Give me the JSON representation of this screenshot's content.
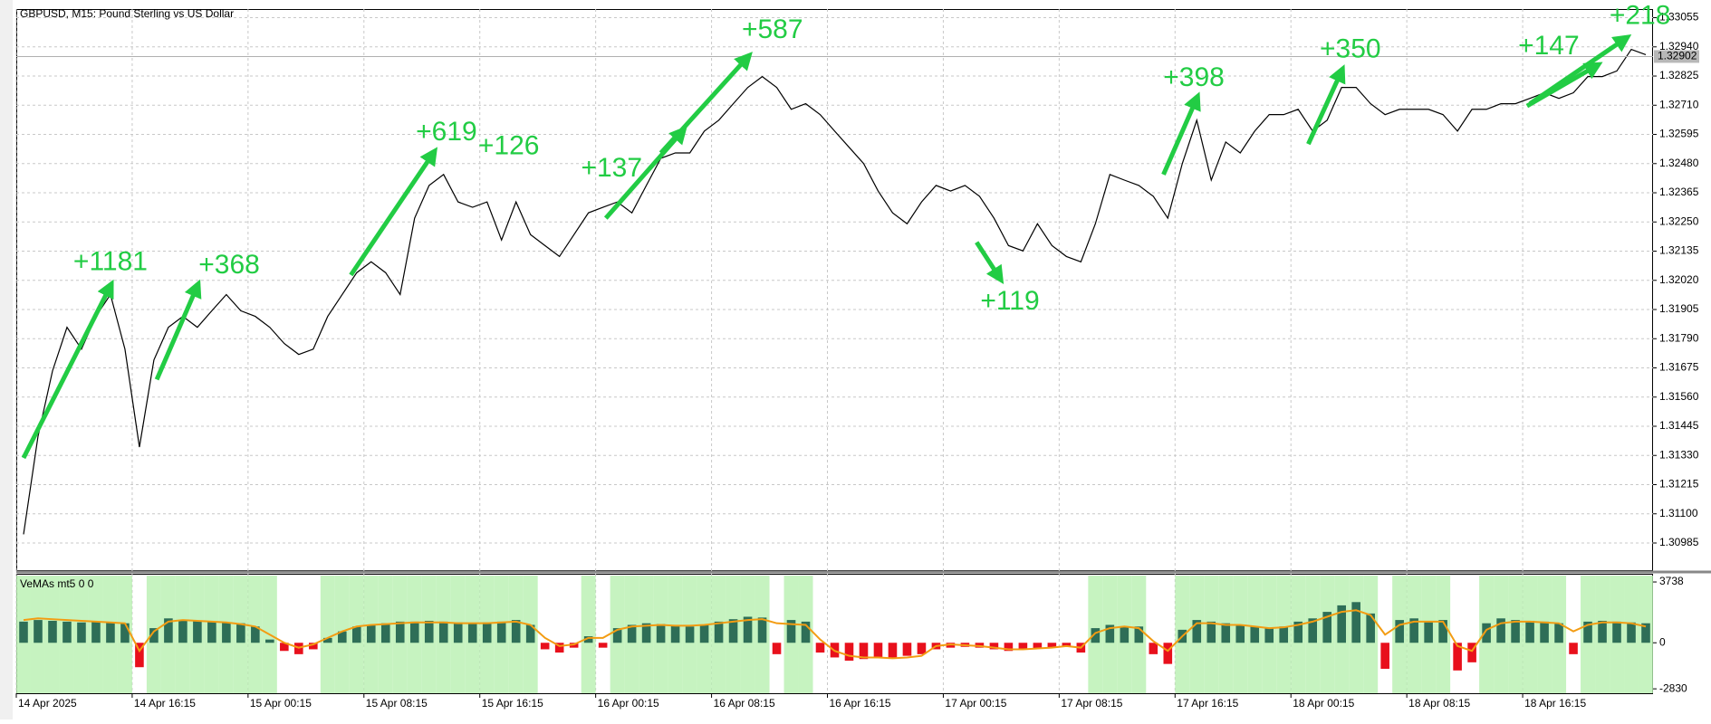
{
  "chart_data": [
    {
      "type": "line",
      "title": "GBPUSD, M15:  Pound Sterling vs US Dollar",
      "color": "#000000",
      "grid": true,
      "categories": [
        "14 Apr 2025",
        null,
        null,
        null,
        null,
        null,
        null,
        null,
        "14 Apr 16:15",
        null,
        null,
        null,
        null,
        null,
        null,
        null,
        "15 Apr 00:15",
        null,
        null,
        null,
        null,
        null,
        null,
        null,
        "15 Apr 08:15",
        null,
        null,
        null,
        null,
        null,
        null,
        null,
        "15 Apr 16:15",
        null,
        null,
        null,
        null,
        null,
        null,
        null,
        "16 Apr 00:15",
        null,
        null,
        null,
        null,
        null,
        null,
        null,
        "16 Apr 08:15",
        null,
        null,
        null,
        null,
        null,
        null,
        null,
        "16 Apr 16:15",
        null,
        null,
        null,
        null,
        null,
        null,
        null,
        "17 Apr 00:15",
        null,
        null,
        null,
        null,
        null,
        null,
        null,
        "17 Apr 08:15",
        null,
        null,
        null,
        null,
        null,
        null,
        null,
        "17 Apr 16:15",
        null,
        null,
        null,
        null,
        null,
        null,
        null,
        "18 Apr 00:15",
        null,
        null,
        null,
        null,
        null,
        null,
        null,
        "18 Apr 08:15",
        null,
        null,
        null,
        null,
        null,
        null,
        null,
        "18 Apr 16:15",
        null,
        null,
        null,
        null,
        null,
        null,
        null,
        null
      ],
      "values": [
        1.31019,
        1.31406,
        1.31663,
        1.31835,
        1.31749,
        1.31878,
        1.31964,
        1.31749,
        1.31363,
        1.31706,
        1.31835,
        1.31878,
        1.31835,
        1.319,
        1.31964,
        1.319,
        1.31878,
        1.31835,
        1.31771,
        1.31728,
        1.31749,
        1.31878,
        1.31964,
        1.3205,
        1.32093,
        1.3205,
        1.31964,
        1.32265,
        1.32394,
        1.32437,
        1.32329,
        1.32308,
        1.32329,
        1.32179,
        1.32329,
        1.322,
        1.32157,
        1.32114,
        1.322,
        1.32286,
        1.32308,
        1.32329,
        1.32286,
        1.32394,
        1.32501,
        1.32522,
        1.32522,
        1.32608,
        1.32651,
        1.32716,
        1.3278,
        1.32823,
        1.3278,
        1.32694,
        1.32716,
        1.32673,
        1.32608,
        1.32544,
        1.3248,
        1.32372,
        1.32286,
        1.32243,
        1.32329,
        1.32394,
        1.32372,
        1.32394,
        1.32351,
        1.32265,
        1.32157,
        1.32136,
        1.32243,
        1.32157,
        1.32114,
        1.32093,
        1.32243,
        1.32437,
        1.32415,
        1.32394,
        1.32351,
        1.32265,
        1.3248,
        1.32651,
        1.32415,
        1.32565,
        1.32522,
        1.32608,
        1.32673,
        1.32673,
        1.32694,
        1.32608,
        1.32651,
        1.3278,
        1.3278,
        1.32716,
        1.32673,
        1.32694,
        1.32694,
        1.32694,
        1.32673,
        1.32608,
        1.32694,
        1.32694,
        1.32716,
        1.32716,
        1.32737,
        1.32759,
        1.32737,
        1.32759,
        1.32823,
        1.32823,
        1.32845,
        1.3293,
        1.32909
      ],
      "ylim": [
        1.30878,
        1.33089
      ],
      "yticks": [
        1.33055,
        {
          "value": 1.3294,
          "label": "1.32940"
        },
        1.32825,
        {
          "value": 1.3271,
          "label": "1.32710"
        },
        1.32595,
        {
          "value": 1.3248,
          "label": "1.32480"
        },
        1.32365,
        {
          "value": 1.3225,
          "label": "1.32250"
        },
        1.32135,
        {
          "value": 1.3202,
          "label": "1.32020"
        },
        1.31905,
        {
          "value": 1.3179,
          "label": "1.31790"
        },
        1.31675,
        {
          "value": 1.3156,
          "label": "1.31560"
        },
        1.31445,
        {
          "value": 1.3133,
          "label": "1.31330"
        },
        1.31215,
        {
          "value": 1.311,
          "label": "1.31100"
        },
        1.30985
      ],
      "current_price": 1.32902,
      "annotation_color": "#22cc44",
      "annotations": [
        {
          "text": "+1181",
          "x": 6,
          "y": 1.32089,
          "x0": 0,
          "y0": 1.3132,
          "x1": 6,
          "y1": 1.31998
        },
        {
          "text": "+368",
          "x": 14.2,
          "y": 1.32076,
          "x0": 9.2,
          "y0": 1.31629,
          "x1": 12,
          "y1": 1.31998
        },
        {
          "text": "+619",
          "x": 29.2,
          "y": 1.326,
          "x0": 22.6,
          "y0": 1.32041,
          "x1": 28.3,
          "y1": 1.32522
        },
        {
          "text": "+126",
          "x": 33.5,
          "y": 1.32544
        },
        {
          "text": "+137",
          "x": 40.6,
          "y": 1.32458,
          "x0": 40.2,
          "y0": 1.32265,
          "x1": 45.5,
          "y1": 1.32608
        },
        {
          "text": "+587",
          "x": 51.7,
          "y": 1.33003,
          "x0": 44,
          "y0": 1.32522,
          "x1": 50,
          "y1": 1.329
        },
        {
          "text": "+119",
          "x": 68.1,
          "y": 1.31934,
          "x0": 65.8,
          "y0": 1.3217,
          "x1": 67.4,
          "y1": 1.32029
        },
        {
          "text": "+398",
          "x": 80.8,
          "y": 1.32815,
          "x0": 78.7,
          "y0": 1.32437,
          "x1": 81,
          "y1": 1.32737
        },
        {
          "text": "+350",
          "x": 91.6,
          "y": 1.32926,
          "x0": 88.7,
          "y0": 1.32557,
          "x1": 91,
          "y1": 1.32845
        },
        {
          "text": "+147",
          "x": 105.3,
          "y": 1.32939,
          "x0": 103.8,
          "y0": 1.32707,
          "x1": 108.6,
          "y1": 1.32866
        },
        {
          "text": "+218",
          "x": 111.6,
          "y": 1.33059,
          "x0": 104,
          "y0": 1.32716,
          "x1": 110.6,
          "y1": 1.32973
        }
      ]
    },
    {
      "type": "bar",
      "title": "VeMAs mt5 0 0",
      "positive_color": "#2e6e57",
      "negative_color": "#e8101c",
      "band_color": "#b8f0b0",
      "line_color": "#f39c12",
      "values": [
        1300,
        1400,
        1350,
        1300,
        1250,
        1300,
        1250,
        1200,
        -1500,
        900,
        1500,
        1400,
        1350,
        1300,
        1250,
        1200,
        1000,
        200,
        -500,
        -700,
        -400,
        300,
        700,
        1000,
        1100,
        1200,
        1300,
        1300,
        1350,
        1300,
        1250,
        1200,
        1250,
        1300,
        1400,
        1100,
        -400,
        -600,
        -300,
        400,
        -300,
        900,
        1100,
        1200,
        1150,
        1100,
        1000,
        1100,
        1300,
        1450,
        1600,
        1550,
        -700,
        1400,
        1300,
        -600,
        -900,
        -1100,
        -1000,
        -900,
        -950,
        -800,
        -700,
        -400,
        -300,
        -250,
        -300,
        -400,
        -500,
        -400,
        -350,
        -300,
        -250,
        -600,
        900,
        1100,
        1000,
        1000,
        -700,
        -1300,
        800,
        1400,
        1300,
        1200,
        1100,
        1000,
        900,
        1000,
        1300,
        1500,
        1900,
        2300,
        2500,
        1800,
        -1600,
        1400,
        1500,
        1300,
        1400,
        -1700,
        -1200,
        1200,
        1500,
        1400,
        1350,
        1300,
        1200,
        -700,
        1300,
        1350,
        1300,
        1250,
        1200
      ],
      "line_values": [
        1400,
        1500,
        1450,
        1400,
        1350,
        1300,
        1250,
        1200,
        -500,
        700,
        1300,
        1400,
        1350,
        1300,
        1250,
        1150,
        1000,
        500,
        0,
        -300,
        -100,
        300,
        700,
        1000,
        1100,
        1150,
        1200,
        1250,
        1250,
        1250,
        1200,
        1200,
        1200,
        1250,
        1300,
        1100,
        300,
        -200,
        -100,
        300,
        300,
        800,
        1000,
        1050,
        1100,
        1050,
        1050,
        1100,
        1200,
        1300,
        1400,
        1450,
        1200,
        1150,
        1100,
        200,
        -500,
        -800,
        -900,
        -900,
        -950,
        -900,
        -800,
        -200,
        -100,
        -150,
        -200,
        -300,
        -400,
        -400,
        -350,
        -300,
        -200,
        -300,
        600,
        900,
        1000,
        900,
        100,
        -500,
        400,
        1200,
        1200,
        1100,
        1100,
        1000,
        900,
        950,
        1100,
        1300,
        1600,
        1900,
        2000,
        1700,
        500,
        1100,
        1300,
        1300,
        1300,
        -200,
        -500,
        800,
        1200,
        1300,
        1300,
        1250,
        1200,
        700,
        1100,
        1250,
        1250,
        1200,
        1000
      ],
      "ylim": [
        -3100,
        4130
      ],
      "yticks": [
        3738,
        0,
        -2830
      ]
    }
  ]
}
